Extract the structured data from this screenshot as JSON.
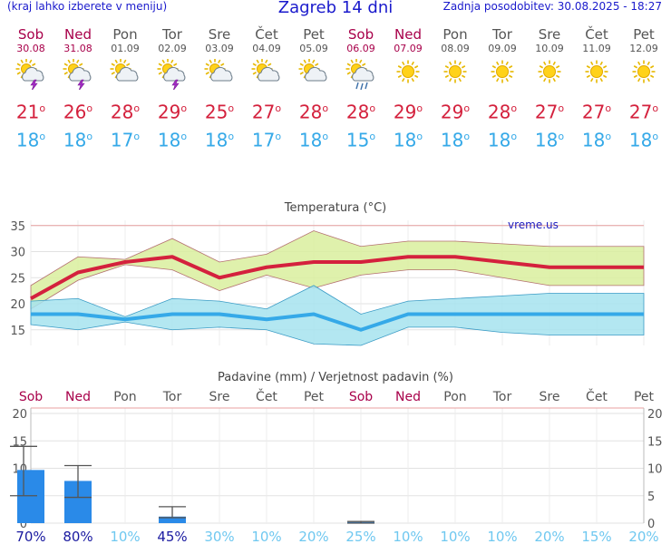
{
  "header": {
    "menu_hint": "(kraj lahko izberete v meniju)",
    "title": "Zagreb 14 dni",
    "updated": "Zadnja posodobitev: 30.08.2025 - 18:27"
  },
  "colors": {
    "weekend": "#a8004a",
    "weekday": "#555555",
    "tmax": "#d4213d",
    "tmin": "#35a9e8",
    "precip_bar": "#2a8ae8",
    "prob_high": "#1a1aa0",
    "prob_low": "#6fc8f0"
  },
  "days": [
    {
      "name": "Sob",
      "date": "30.08",
      "weekend": true,
      "icon": "sun-cloud-thunder-icon",
      "tmax": "21",
      "tmin": "18"
    },
    {
      "name": "Ned",
      "date": "31.08",
      "weekend": true,
      "icon": "sun-cloud-thunder-icon",
      "tmax": "26",
      "tmin": "18"
    },
    {
      "name": "Pon",
      "date": "01.09",
      "weekend": false,
      "icon": "sun-cloud-icon",
      "tmax": "28",
      "tmin": "17"
    },
    {
      "name": "Tor",
      "date": "02.09",
      "weekend": false,
      "icon": "sun-cloud-thunder-icon",
      "tmax": "29",
      "tmin": "18"
    },
    {
      "name": "Sre",
      "date": "03.09",
      "weekend": false,
      "icon": "sun-cloud-icon",
      "tmax": "25",
      "tmin": "18"
    },
    {
      "name": "Čet",
      "date": "04.09",
      "weekend": false,
      "icon": "sun-cloud-icon",
      "tmax": "27",
      "tmin": "17"
    },
    {
      "name": "Pet",
      "date": "05.09",
      "weekend": false,
      "icon": "sun-cloud-icon",
      "tmax": "28",
      "tmin": "18"
    },
    {
      "name": "Sob",
      "date": "06.09",
      "weekend": true,
      "icon": "sun-cloud-rain-icon",
      "tmax": "28",
      "tmin": "15"
    },
    {
      "name": "Ned",
      "date": "07.09",
      "weekend": true,
      "icon": "sun-icon",
      "tmax": "29",
      "tmin": "18"
    },
    {
      "name": "Pon",
      "date": "08.09",
      "weekend": false,
      "icon": "sun-icon",
      "tmax": "29",
      "tmin": "18"
    },
    {
      "name": "Tor",
      "date": "09.09",
      "weekend": false,
      "icon": "sun-icon",
      "tmax": "28",
      "tmin": "18"
    },
    {
      "name": "Sre",
      "date": "10.09",
      "weekend": false,
      "icon": "sun-icon",
      "tmax": "27",
      "tmin": "18"
    },
    {
      "name": "Čet",
      "date": "11.09",
      "weekend": false,
      "icon": "sun-icon",
      "tmax": "27",
      "tmin": "18"
    },
    {
      "name": "Pet",
      "date": "12.09",
      "weekend": false,
      "icon": "sun-icon",
      "tmax": "27",
      "tmin": "18"
    }
  ],
  "chart_data": [
    {
      "type": "line",
      "title": "Temperatura (°C)",
      "watermark": "vreme.us",
      "x": [
        "Sob",
        "Ned",
        "Pon",
        "Tor",
        "Sre",
        "Čet",
        "Pet",
        "Sob",
        "Ned",
        "Pon",
        "Tor",
        "Sre",
        "Čet",
        "Pet"
      ],
      "ylim": [
        12,
        36
      ],
      "yticks": [
        15,
        20,
        25,
        30,
        35
      ],
      "grid": true,
      "series": [
        {
          "values": [
            21,
            26,
            28,
            29,
            25,
            27,
            28,
            28,
            29,
            29,
            28,
            27,
            27,
            27
          ]
        },
        {
          "values": [
            23.5,
            29,
            28.5,
            32.5,
            28,
            29.5,
            34,
            31,
            32,
            32,
            31.5,
            31,
            31,
            31
          ]
        },
        {
          "values": [
            19,
            24.5,
            27.5,
            26.5,
            22.5,
            25.5,
            23,
            25.5,
            26.5,
            26.5,
            25,
            23.5,
            23.5,
            23.5
          ]
        },
        {
          "values": [
            18,
            18,
            17,
            18,
            18,
            17,
            18,
            15,
            18,
            18,
            18,
            18,
            18,
            18
          ]
        },
        {
          "values": [
            20.5,
            21,
            17.5,
            21,
            20.5,
            19,
            23.5,
            18,
            20.5,
            21,
            21.5,
            22,
            22,
            22
          ]
        },
        {
          "values": [
            16,
            15,
            16.5,
            15,
            15.5,
            15,
            12.3,
            12,
            15.5,
            15.5,
            14.5,
            14,
            14,
            14
          ]
        }
      ]
    },
    {
      "type": "bar",
      "title": "Padavine (mm) / Verjetnost padavin (%)",
      "x": [
        "Sob",
        "Ned",
        "Pon",
        "Tor",
        "Sre",
        "Čet",
        "Pet",
        "Sob",
        "Ned",
        "Pon",
        "Tor",
        "Sre",
        "Čet",
        "Pet"
      ],
      "ylim": [
        0,
        21
      ],
      "yticks": [
        0,
        5,
        10,
        15,
        20
      ],
      "values": [
        9.7,
        7.7,
        0,
        1.2,
        0,
        0,
        0,
        0.2,
        0,
        0,
        0,
        0,
        0,
        0
      ],
      "error_high": [
        14,
        10.5,
        null,
        3,
        null,
        null,
        null,
        0.3,
        null,
        null,
        null,
        null,
        null,
        null
      ],
      "error_low": [
        5,
        4.7,
        null,
        1,
        null,
        null,
        null,
        0,
        null,
        null,
        null,
        null,
        null,
        null
      ],
      "probability": [
        "70%",
        "80%",
        "10%",
        "45%",
        "30%",
        "10%",
        "20%",
        "25%",
        "10%",
        "10%",
        "10%",
        "20%",
        "15%",
        "20%"
      ],
      "probability_values": [
        70,
        80,
        10,
        45,
        30,
        10,
        20,
        25,
        10,
        10,
        10,
        20,
        15,
        20
      ]
    }
  ]
}
